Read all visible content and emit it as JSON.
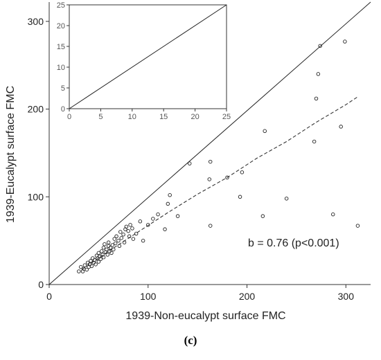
{
  "caption": "(c)",
  "chart_data": [
    {
      "type": "scatter",
      "xlabel": "1939-Non-eucalypt surface FMC",
      "ylabel": "1939-Eucalypt surface FMC",
      "xlim": [
        0,
        325
      ],
      "ylim": [
        0,
        322
      ],
      "xticks": [
        0,
        100,
        200,
        300
      ],
      "yticks": [
        0,
        100,
        200,
        300
      ],
      "grid": false,
      "annotation": "b = 0.76 (p<0.001)",
      "reference_line": {
        "x": [
          0,
          325
        ],
        "y": [
          0,
          322
        ]
      },
      "fit_line": {
        "x": [
          33,
          60,
          90,
          120,
          150,
          180,
          210,
          240,
          270,
          300,
          312
        ],
        "y": [
          17,
          38,
          60,
          82,
          103,
          122,
          144,
          163,
          185,
          205,
          214
        ]
      },
      "points": [
        {
          "x": 30,
          "y": 15
        },
        {
          "x": 32,
          "y": 20
        },
        {
          "x": 34,
          "y": 15
        },
        {
          "x": 35,
          "y": 18
        },
        {
          "x": 36,
          "y": 22
        },
        {
          "x": 38,
          "y": 17
        },
        {
          "x": 39,
          "y": 25
        },
        {
          "x": 40,
          "y": 20
        },
        {
          "x": 41,
          "y": 23
        },
        {
          "x": 42,
          "y": 27
        },
        {
          "x": 43,
          "y": 21
        },
        {
          "x": 44,
          "y": 30
        },
        {
          "x": 45,
          "y": 25
        },
        {
          "x": 46,
          "y": 28
        },
        {
          "x": 47,
          "y": 23
        },
        {
          "x": 48,
          "y": 33
        },
        {
          "x": 49,
          "y": 30
        },
        {
          "x": 50,
          "y": 26
        },
        {
          "x": 50,
          "y": 36
        },
        {
          "x": 51,
          "y": 32
        },
        {
          "x": 52,
          "y": 29
        },
        {
          "x": 53,
          "y": 38
        },
        {
          "x": 54,
          "y": 34
        },
        {
          "x": 55,
          "y": 42
        },
        {
          "x": 55,
          "y": 31
        },
        {
          "x": 56,
          "y": 46
        },
        {
          "x": 57,
          "y": 37
        },
        {
          "x": 58,
          "y": 40
        },
        {
          "x": 59,
          "y": 34
        },
        {
          "x": 60,
          "y": 44
        },
        {
          "x": 60,
          "y": 48
        },
        {
          "x": 61,
          "y": 38
        },
        {
          "x": 62,
          "y": 42
        },
        {
          "x": 63,
          "y": 36
        },
        {
          "x": 64,
          "y": 45
        },
        {
          "x": 65,
          "y": 40
        },
        {
          "x": 66,
          "y": 52
        },
        {
          "x": 67,
          "y": 47
        },
        {
          "x": 68,
          "y": 55
        },
        {
          "x": 70,
          "y": 50
        },
        {
          "x": 71,
          "y": 44
        },
        {
          "x": 72,
          "y": 60
        },
        {
          "x": 73,
          "y": 53
        },
        {
          "x": 75,
          "y": 57
        },
        {
          "x": 76,
          "y": 48
        },
        {
          "x": 77,
          "y": 63
        },
        {
          "x": 78,
          "y": 66
        },
        {
          "x": 80,
          "y": 61
        },
        {
          "x": 81,
          "y": 55
        },
        {
          "x": 82,
          "y": 68
        },
        {
          "x": 84,
          "y": 64
        },
        {
          "x": 85,
          "y": 52
        },
        {
          "x": 88,
          "y": 58
        },
        {
          "x": 92,
          "y": 72
        },
        {
          "x": 95,
          "y": 50
        },
        {
          "x": 100,
          "y": 68
        },
        {
          "x": 105,
          "y": 75
        },
        {
          "x": 110,
          "y": 80
        },
        {
          "x": 117,
          "y": 63
        },
        {
          "x": 120,
          "y": 92
        },
        {
          "x": 122,
          "y": 102
        },
        {
          "x": 130,
          "y": 78
        },
        {
          "x": 142,
          "y": 138
        },
        {
          "x": 162,
          "y": 120
        },
        {
          "x": 163,
          "y": 140
        },
        {
          "x": 163,
          "y": 67
        },
        {
          "x": 180,
          "y": 122
        },
        {
          "x": 193,
          "y": 100
        },
        {
          "x": 195,
          "y": 128
        },
        {
          "x": 216,
          "y": 78
        },
        {
          "x": 218,
          "y": 175
        },
        {
          "x": 240,
          "y": 98
        },
        {
          "x": 268,
          "y": 163
        },
        {
          "x": 270,
          "y": 212
        },
        {
          "x": 272,
          "y": 240
        },
        {
          "x": 274,
          "y": 272
        },
        {
          "x": 287,
          "y": 80
        },
        {
          "x": 295,
          "y": 180
        },
        {
          "x": 299,
          "y": 277
        },
        {
          "x": 312,
          "y": 67
        }
      ]
    },
    {
      "type": "line",
      "xlim": [
        0,
        25
      ],
      "ylim": [
        0,
        25
      ],
      "xticks": [
        0,
        5,
        10,
        15,
        20,
        25
      ],
      "yticks": [
        0,
        5,
        10,
        15,
        20,
        25
      ],
      "grid": false,
      "series": [
        {
          "x": [
            0,
            25
          ],
          "y": [
            0,
            25
          ]
        }
      ]
    }
  ]
}
